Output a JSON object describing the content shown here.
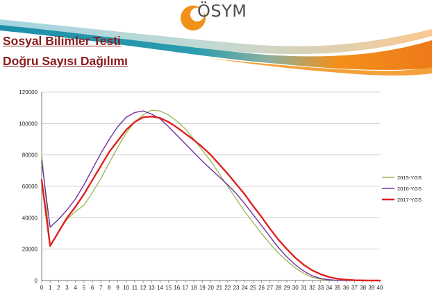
{
  "header": {
    "logo_text": "ÖSYM",
    "title_line_1": "Sosyal Bilimler Testi",
    "title_line_2": "Doğru Sayısı Dağılımı"
  },
  "colors": {
    "logo_orange": "#f39019",
    "wave_teal": "#1d8fa8",
    "wave_orange": "#f39019",
    "title_red": "#8b1d1d"
  },
  "chart_data": {
    "type": "line",
    "title": "",
    "xlabel": "",
    "ylabel": "",
    "xlim": [
      0,
      40
    ],
    "ylim": [
      0,
      120000
    ],
    "grid": "horizontal",
    "legend_position": "right",
    "x": [
      0,
      1,
      2,
      3,
      4,
      5,
      6,
      7,
      8,
      9,
      10,
      11,
      12,
      13,
      14,
      15,
      16,
      17,
      18,
      19,
      20,
      21,
      22,
      23,
      24,
      25,
      26,
      27,
      28,
      29,
      30,
      31,
      32,
      33,
      34,
      35,
      36,
      37,
      38,
      39,
      40
    ],
    "yticks": [
      0,
      20000,
      40000,
      60000,
      80000,
      100000,
      120000
    ],
    "series": [
      {
        "name": "2015-YGS",
        "color": "#9bbb59",
        "values": [
          81000,
          22000,
          31000,
          39000,
          44000,
          48000,
          56000,
          65000,
          75000,
          85000,
          94000,
          101000,
          105500,
          108500,
          108000,
          105500,
          101500,
          96500,
          90000,
          83000,
          76000,
          68000,
          60000,
          52000,
          44000,
          37000,
          30000,
          23500,
          17500,
          12500,
          8000,
          4500,
          2000,
          900,
          300,
          100,
          40,
          10,
          0,
          0,
          0
        ]
      },
      {
        "name": "2016-YGS",
        "color": "#7030a0",
        "values": [
          76000,
          34000,
          39000,
          45000,
          52000,
          61000,
          71000,
          81000,
          90000,
          98000,
          104000,
          107000,
          108000,
          106000,
          103000,
          98000,
          92500,
          87000,
          81500,
          76000,
          71000,
          66000,
          61000,
          55500,
          49000,
          42000,
          35000,
          28000,
          21000,
          15000,
          10000,
          6000,
          3000,
          1300,
          500,
          150,
          50,
          10,
          0,
          0,
          0
        ]
      },
      {
        "name": "2017-YGS",
        "color": "#e02020",
        "values": [
          64000,
          22000,
          31000,
          40000,
          47000,
          55000,
          64000,
          73000,
          82000,
          89000,
          96000,
          101000,
          104000,
          104500,
          103500,
          101000,
          97500,
          93500,
          89500,
          85000,
          80000,
          74000,
          68000,
          61500,
          55000,
          47500,
          40500,
          33000,
          26000,
          20000,
          14500,
          10000,
          6500,
          4000,
          2200,
          1100,
          500,
          200,
          60,
          10,
          0
        ]
      }
    ]
  }
}
